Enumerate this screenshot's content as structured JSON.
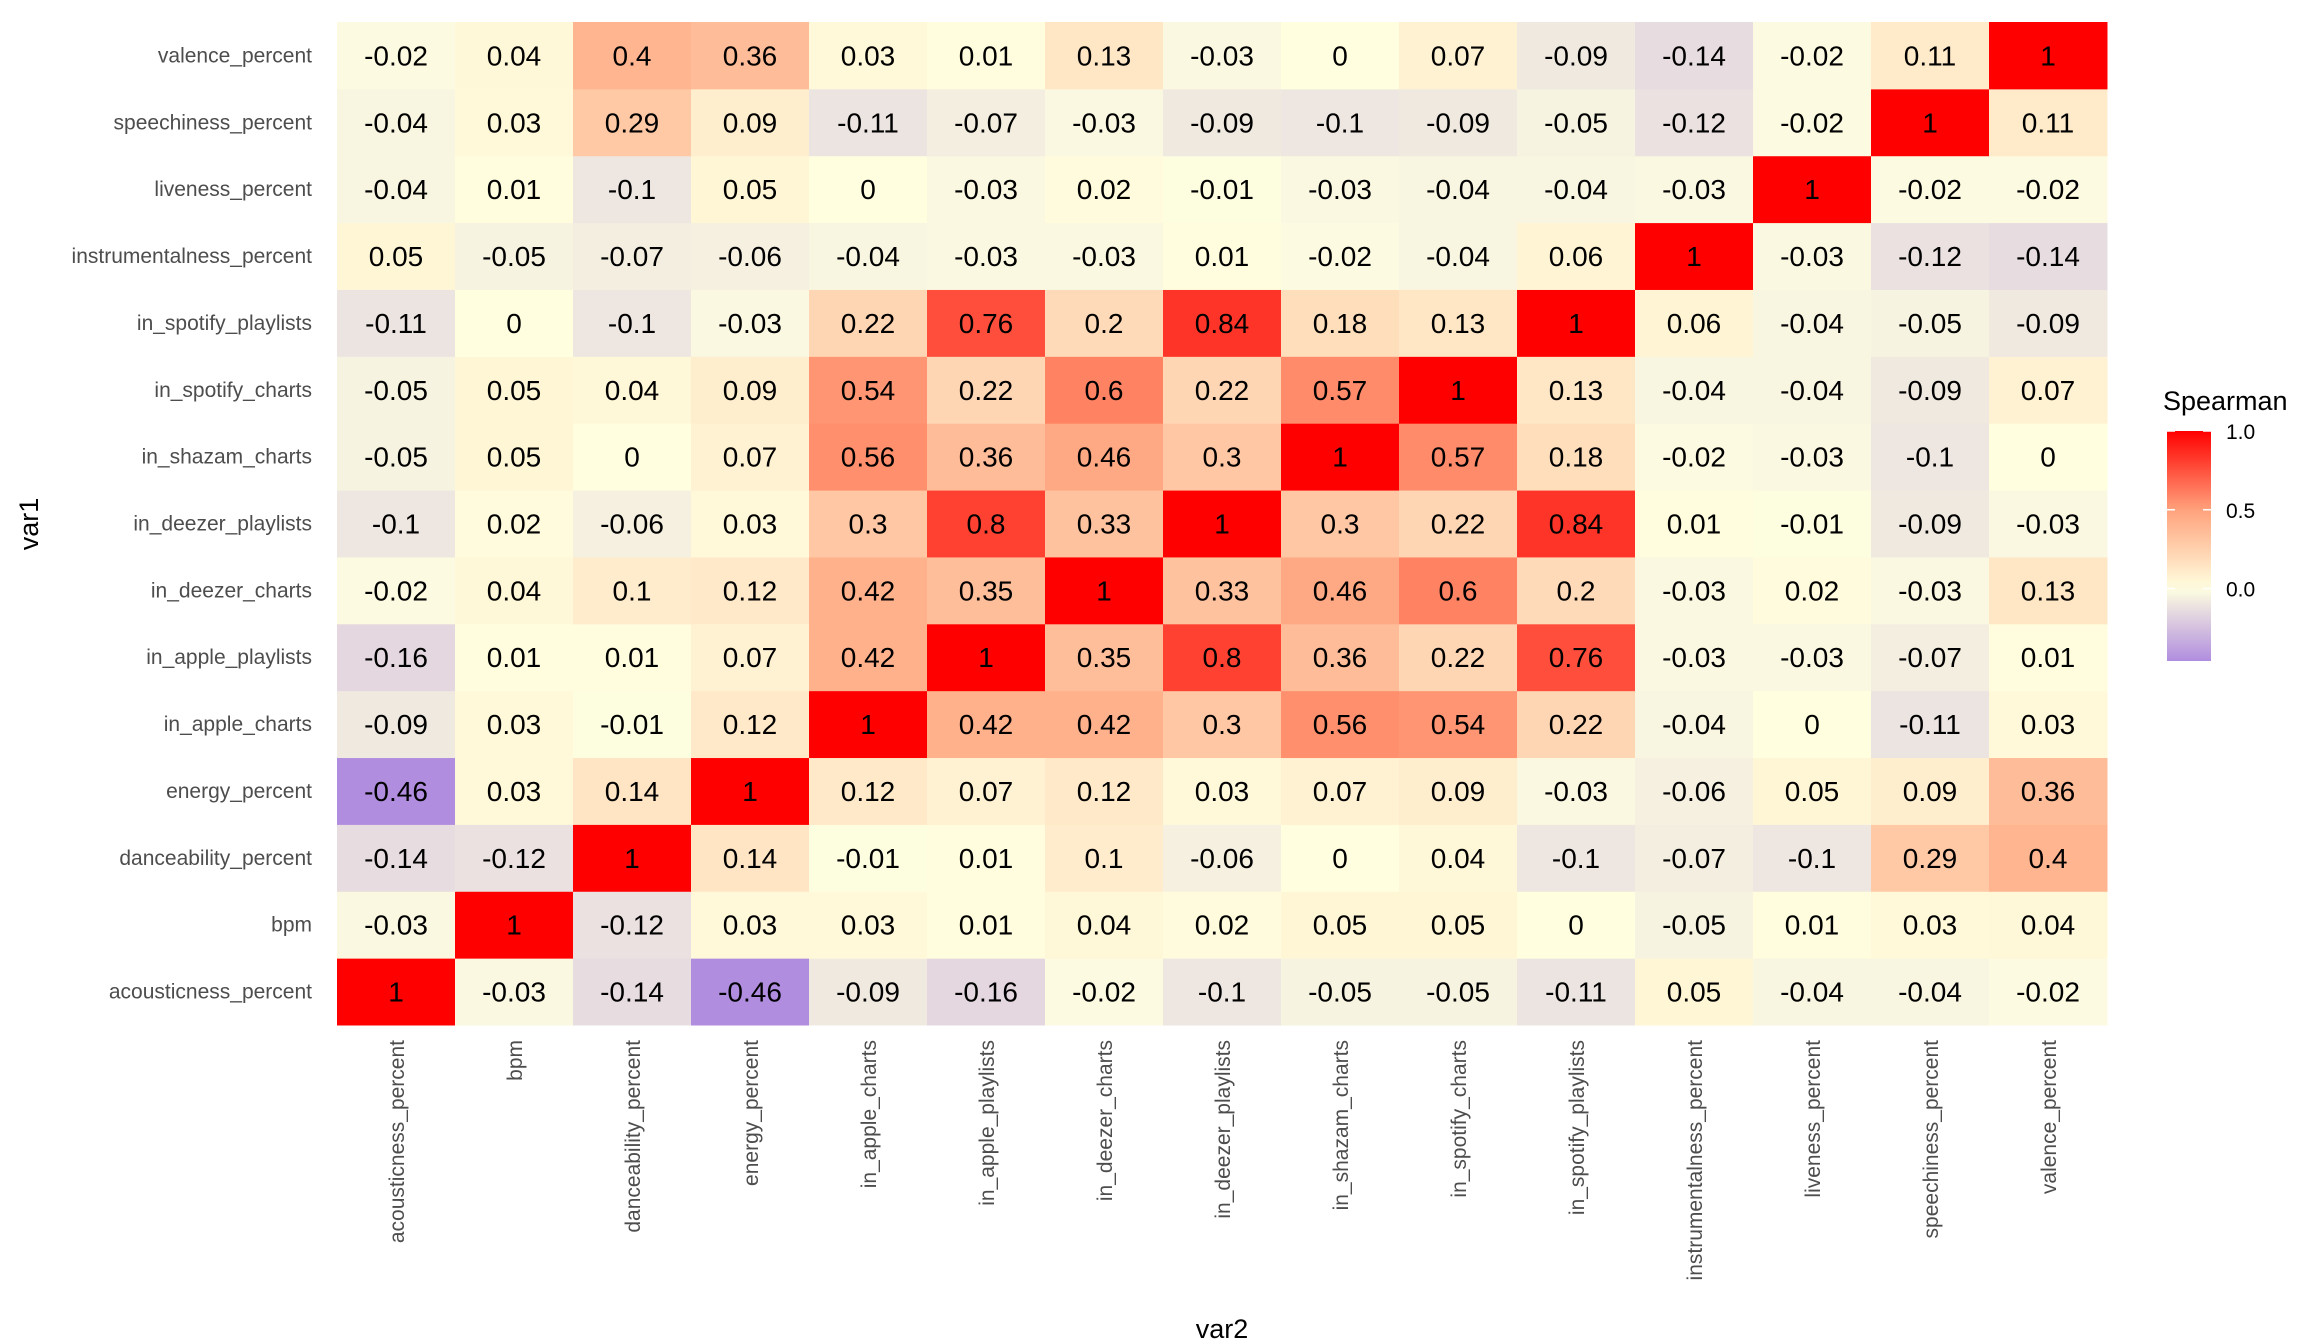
{
  "chart_data": {
    "type": "heatmap",
    "title": "",
    "xlabel": "var2",
    "ylabel": "var1",
    "variables": [
      "acousticness_percent",
      "bpm",
      "danceability_percent",
      "energy_percent",
      "in_apple_charts",
      "in_apple_playlists",
      "in_deezer_charts",
      "in_deezer_playlists",
      "in_shazam_charts",
      "in_spotify_charts",
      "in_spotify_playlists",
      "instrumentalness_percent",
      "liveness_percent",
      "speechiness_percent",
      "valence_percent"
    ],
    "matrix": [
      [
        1,
        -0.03,
        -0.14,
        -0.46,
        -0.09,
        -0.16,
        -0.02,
        -0.1,
        -0.05,
        -0.05,
        -0.11,
        0.05,
        -0.04,
        -0.04,
        -0.02
      ],
      [
        -0.03,
        1,
        -0.12,
        0.03,
        0.03,
        0.01,
        0.04,
        0.02,
        0.05,
        0.05,
        0,
        -0.05,
        0.01,
        0.03,
        0.04
      ],
      [
        -0.14,
        -0.12,
        1,
        0.14,
        -0.01,
        0.01,
        0.1,
        -0.06,
        0,
        0.04,
        -0.1,
        -0.07,
        -0.1,
        0.29,
        0.4
      ],
      [
        -0.46,
        0.03,
        0.14,
        1,
        0.12,
        0.07,
        0.12,
        0.03,
        0.07,
        0.09,
        -0.03,
        -0.06,
        0.05,
        0.09,
        0.36
      ],
      [
        -0.09,
        0.03,
        -0.01,
        0.12,
        1,
        0.42,
        0.42,
        0.3,
        0.56,
        0.54,
        0.22,
        -0.04,
        0,
        -0.11,
        0.03
      ],
      [
        -0.16,
        0.01,
        0.01,
        0.07,
        0.42,
        1,
        0.35,
        0.8,
        0.36,
        0.22,
        0.76,
        -0.03,
        -0.03,
        -0.07,
        0.01
      ],
      [
        -0.02,
        0.04,
        0.1,
        0.12,
        0.42,
        0.35,
        1,
        0.33,
        0.46,
        0.6,
        0.2,
        -0.03,
        0.02,
        -0.03,
        0.13
      ],
      [
        -0.1,
        0.02,
        -0.06,
        0.03,
        0.3,
        0.8,
        0.33,
        1,
        0.3,
        0.22,
        0.84,
        0.01,
        -0.01,
        -0.09,
        -0.03
      ],
      [
        -0.05,
        0.05,
        0,
        0.07,
        0.56,
        0.36,
        0.46,
        0.3,
        1,
        0.57,
        0.18,
        -0.02,
        -0.03,
        -0.1,
        0
      ],
      [
        -0.05,
        0.05,
        0.04,
        0.09,
        0.54,
        0.22,
        0.6,
        0.22,
        0.57,
        1,
        0.13,
        -0.04,
        -0.04,
        -0.09,
        0.07
      ],
      [
        -0.11,
        0,
        -0.1,
        -0.03,
        0.22,
        0.76,
        0.2,
        0.84,
        0.18,
        0.13,
        1,
        0.06,
        -0.04,
        -0.05,
        -0.09
      ],
      [
        0.05,
        -0.05,
        -0.07,
        -0.06,
        -0.04,
        -0.03,
        -0.03,
        0.01,
        -0.02,
        -0.04,
        0.06,
        1,
        -0.03,
        -0.12,
        -0.14
      ],
      [
        -0.04,
        0.01,
        -0.1,
        0.05,
        0,
        -0.03,
        0.02,
        -0.01,
        -0.03,
        -0.04,
        -0.04,
        -0.03,
        1,
        -0.02,
        -0.02
      ],
      [
        -0.04,
        0.03,
        0.29,
        0.09,
        -0.11,
        -0.07,
        -0.03,
        -0.09,
        -0.1,
        -0.09,
        -0.05,
        -0.12,
        -0.02,
        1,
        0.11
      ],
      [
        -0.02,
        0.04,
        0.4,
        0.36,
        0.03,
        0.01,
        0.13,
        -0.03,
        0,
        0.07,
        -0.09,
        -0.14,
        -0.02,
        0.11,
        1
      ]
    ],
    "legend": {
      "title": "Spearman",
      "placement": "right",
      "range": [
        -0.46,
        1.0
      ],
      "ticks": [
        1.0,
        0.5,
        0.0
      ],
      "tick_labels": [
        "1.0",
        "0.5",
        "0.0"
      ]
    },
    "colors": {
      "low": "#b08ddf",
      "mid": "#ffffe0",
      "half": "#ffa27c",
      "high": "#ff0000"
    }
  }
}
